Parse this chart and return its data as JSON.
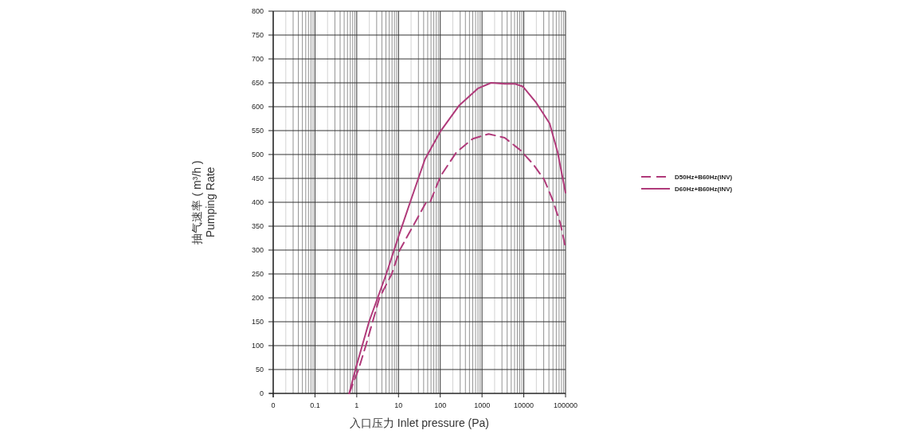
{
  "chart_data": {
    "type": "line",
    "xlabel": "入口压力 Inlet pressure (Pa)",
    "ylabel": "抽气速率 ( m³/h )\nPumping Rate",
    "log": "x",
    "grid": true,
    "legend": "right",
    "xlim": [
      0.01,
      100000
    ],
    "xticks": [
      {
        "value": 0.01,
        "label": "0"
      },
      0.1,
      1,
      10,
      100,
      1000,
      10000,
      100000
    ],
    "ylim": [
      0,
      800
    ],
    "yticks": [
      0,
      50,
      100,
      150,
      200,
      250,
      300,
      350,
      400,
      450,
      500,
      550,
      600,
      650,
      700,
      750,
      800
    ],
    "series": [
      {
        "name": "D50Hz+B60Hz(INV)",
        "color": "#b03a7a",
        "line_style": "dashed",
        "x": [
          0.66,
          1.1,
          1.65,
          3.5,
          6.9,
          10.7,
          46,
          57,
          102,
          245,
          600,
          1440,
          3500,
          8300,
          17000,
          31000,
          49000,
          75000,
          100000
        ],
        "values": [
          0,
          50,
          100,
          200,
          250,
          300,
          400,
          400,
          455,
          505,
          533,
          543,
          535,
          509,
          479,
          447,
          405,
          356,
          305
        ]
      },
      {
        "name": "D60Hz+B60Hz(INV)",
        "color": "#b03a7a",
        "line_style": "solid",
        "x": [
          0.66,
          0.95,
          1.97,
          5.1,
          9.9,
          19,
          43,
          102,
          286,
          790,
          1650,
          3500,
          6200,
          9600,
          20000,
          41600,
          64500,
          100000
        ],
        "values": [
          0,
          53,
          150,
          250,
          327,
          400,
          490,
          549,
          603,
          638,
          650,
          648,
          648,
          642,
          608,
          565,
          505,
          420
        ]
      }
    ]
  }
}
